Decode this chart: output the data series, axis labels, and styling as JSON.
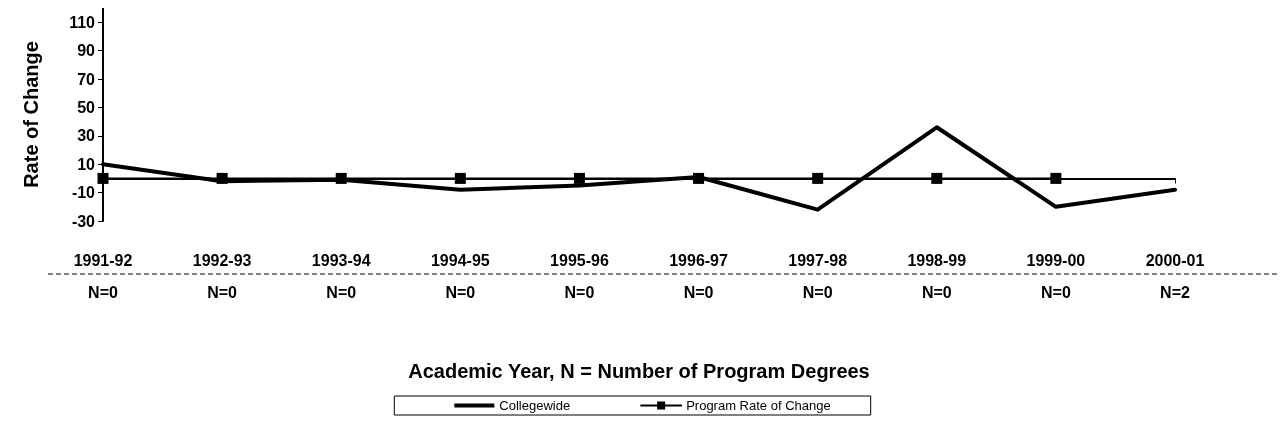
{
  "chart_data": {
    "type": "line",
    "xlabel": "Academic Year, N = Number of Program Degrees",
    "ylabel": "Rate of Change",
    "categories": [
      "1991-92\nN=0",
      "1992-93\nN=0",
      "1993-94\nN=0",
      "1994-95\nN=0",
      "1995-96\nN=0",
      "1996-97\nN=0",
      "1997-98\nN=0",
      "1998-99\nN=0",
      "1999-00\nN=0",
      "2000-01\nN=2"
    ],
    "series": [
      {
        "name": "Collegewide",
        "color": "#000000",
        "marker": "none",
        "values": [
          10,
          -2,
          -1,
          -8,
          -5,
          1,
          -22,
          36,
          -20,
          -8
        ]
      },
      {
        "name": "Program Rate of Change",
        "color": "#000000",
        "marker": "square",
        "values": [
          0,
          0,
          0,
          0,
          0,
          0,
          0,
          0,
          0,
          null
        ]
      }
    ],
    "ylim": [
      -30,
      120
    ],
    "yticks": [
      -30,
      -10,
      10,
      30,
      50,
      70,
      90,
      110
    ],
    "grid": false,
    "legend": "bottom",
    "line_style": "solid"
  }
}
